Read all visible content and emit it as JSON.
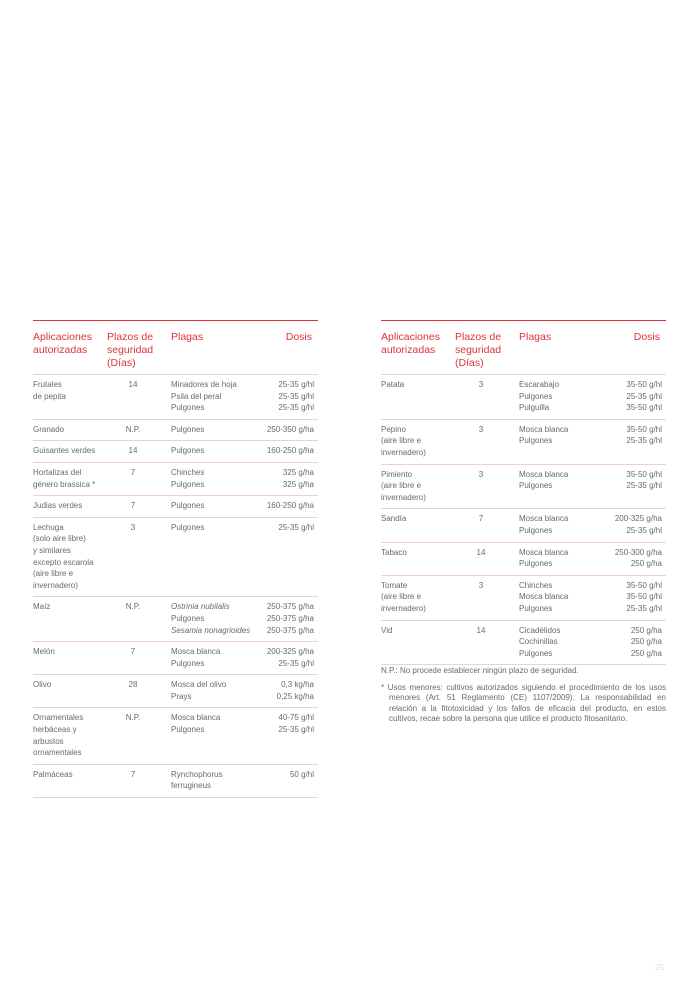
{
  "headers": {
    "aplicaciones": [
      "Aplicaciones",
      "autorizadas"
    ],
    "plazos": [
      "Plazos de",
      "seguridad",
      "(Días)"
    ],
    "plagas": "Plagas",
    "dosis": "Dosis"
  },
  "left_rows": [
    {
      "crop": [
        "Frutales",
        "de pepita"
      ],
      "plazo": "14",
      "plagas": [
        {
          "t": "Minadores de hoja"
        },
        {
          "t": "Psila del peral"
        },
        {
          "t": "Pulgones"
        }
      ],
      "dosis": [
        "25-35 g/hl",
        "25-35 g/hl",
        "25-35 g/hl"
      ]
    },
    {
      "crop": [
        "Granado"
      ],
      "plazo": "N.P.",
      "plagas": [
        {
          "t": "Pulgones"
        }
      ],
      "dosis": [
        "250-350 g/ha"
      ]
    },
    {
      "crop": [
        "Guisantes verdes"
      ],
      "plazo": "14",
      "plagas": [
        {
          "t": "Pulgones"
        }
      ],
      "dosis": [
        "160-250 g/ha"
      ]
    },
    {
      "crop": [
        "Hortalizas del",
        "género brassica *"
      ],
      "plazo": "7",
      "plagas": [
        {
          "t": "Chinches"
        },
        {
          "t": "Pulgones"
        }
      ],
      "dosis": [
        "325 g/ha",
        "325 g/ha"
      ]
    },
    {
      "crop": [
        "Judias verdes"
      ],
      "plazo": "7",
      "plagas": [
        {
          "t": "Pulgones"
        }
      ],
      "dosis": [
        "160-250 g/ha"
      ]
    },
    {
      "crop": [
        "Lechuga",
        "(solo aire libre)",
        "y similares",
        "excepto escarola",
        "(aire libre e",
        "invernadero)"
      ],
      "plazo": "3",
      "plagas": [
        {
          "t": "Pulgones"
        }
      ],
      "dosis": [
        "25-35 g/hl"
      ]
    },
    {
      "crop": [
        "Maíz"
      ],
      "plazo": "N.P.",
      "plagas": [
        {
          "t": "Ostrinia nubilalis",
          "italic": true
        },
        {
          "t": "Pulgones"
        },
        {
          "t": "Sesamia nonagrioides",
          "italic": true
        }
      ],
      "dosis": [
        "250-375 g/ha",
        "250-375 g/ha",
        "250-375 g/ha"
      ]
    },
    {
      "crop": [
        "Melón"
      ],
      "plazo": "7",
      "plagas": [
        {
          "t": "Mosca blanca"
        },
        {
          "t": "Pulgones"
        }
      ],
      "dosis": [
        "200-325 g/ha",
        "25-35 g/hl"
      ]
    },
    {
      "crop": [
        "Olivo"
      ],
      "plazo": "28",
      "plagas": [
        {
          "t": "Mosca del olivo"
        },
        {
          "t": "Prays"
        }
      ],
      "dosis": [
        "0,3 kg/ha",
        "0,25 kg/ha"
      ]
    },
    {
      "crop": [
        "Ornamentales",
        "herbáceas  y",
        "arbustos",
        "ornamentales"
      ],
      "plazo": "N.P.",
      "plagas": [
        {
          "t": "Mosca blanca"
        },
        {
          "t": "Pulgones"
        }
      ],
      "dosis": [
        "40-75 g/hl",
        "25-35 g/hl"
      ]
    },
    {
      "crop": [
        "Palmáceas"
      ],
      "plazo": "7",
      "plagas": [
        {
          "t": "Rynchophorus"
        },
        {
          "t": "ferrugineus"
        }
      ],
      "dosis": [
        "50 g/hl"
      ]
    }
  ],
  "right_rows": [
    {
      "crop": [
        "Patata"
      ],
      "plazo": "3",
      "plagas": [
        {
          "t": "Escarabajo"
        },
        {
          "t": "Pulgones"
        },
        {
          "t": "Pulguilla"
        }
      ],
      "dosis": [
        "35-50 g/hl",
        "25-35 g/hl",
        "35-50 g/hl"
      ]
    },
    {
      "crop": [
        "Pepino",
        "(aire libre e",
        "invernadero)"
      ],
      "plazo": "3",
      "plagas": [
        {
          "t": "Mosca blanca"
        },
        {
          "t": "Pulgones"
        }
      ],
      "dosis": [
        "35-50 g/hl",
        "25-35 g/hl"
      ]
    },
    {
      "crop": [
        "Pimiento",
        "(aire libre e",
        "invernadero)"
      ],
      "plazo": "3",
      "plagas": [
        {
          "t": "Mosca blanca"
        },
        {
          "t": "Pulgones"
        }
      ],
      "dosis": [
        "35-50 g/hl",
        "25-35 g/hl"
      ]
    },
    {
      "crop": [
        "Sandía"
      ],
      "plazo": "7",
      "plagas": [
        {
          "t": "Mosca blanca"
        },
        {
          "t": "Pulgones"
        }
      ],
      "dosis": [
        "200-325 g/ha",
        "25-35 g/hl"
      ]
    },
    {
      "crop": [
        "Tabaco"
      ],
      "plazo": "14",
      "plagas": [
        {
          "t": "Mosca blanca"
        },
        {
          "t": "Pulgones"
        }
      ],
      "dosis": [
        "250-300 g/ha",
        "250 g/ha"
      ]
    },
    {
      "crop": [
        "Tomate",
        "(aire libre e",
        "invernadero)"
      ],
      "plazo": "3",
      "plagas": [
        {
          "t": "Chinches"
        },
        {
          "t": "Mosca blanca"
        },
        {
          "t": "Pulgones"
        }
      ],
      "dosis": [
        "35-50 g/hl",
        "35-50 g/hl",
        "25-35 g/hl"
      ]
    },
    {
      "crop": [
        "Vid"
      ],
      "plazo": "14",
      "plagas": [
        {
          "t": "Cicadélidos"
        },
        {
          "t": "Cochinillas"
        },
        {
          "t": "Pulgones"
        }
      ],
      "dosis": [
        "250 g/ha",
        "250 g/ha",
        "250 g/ha"
      ]
    }
  ],
  "notes": {
    "np": "N.P.: No procede establecer ningún plazo de seguridad.",
    "asterisk": "* Usos menores: cultivos autorizados siguiendo el procedimiento de los usos menores (Art. 51 Reglamento (CE) 1107/2009). La responsabilidad en relación a la fitotoxicidad y los fallos de eficacia del producto, en estos cultivos, recae sobre la persona que utilice el producto fitosanitario."
  },
  "page_number": "25",
  "colors": {
    "accent": "#e0323c",
    "row_divider": "#f2cfcf",
    "text": "#6a6a6a"
  }
}
